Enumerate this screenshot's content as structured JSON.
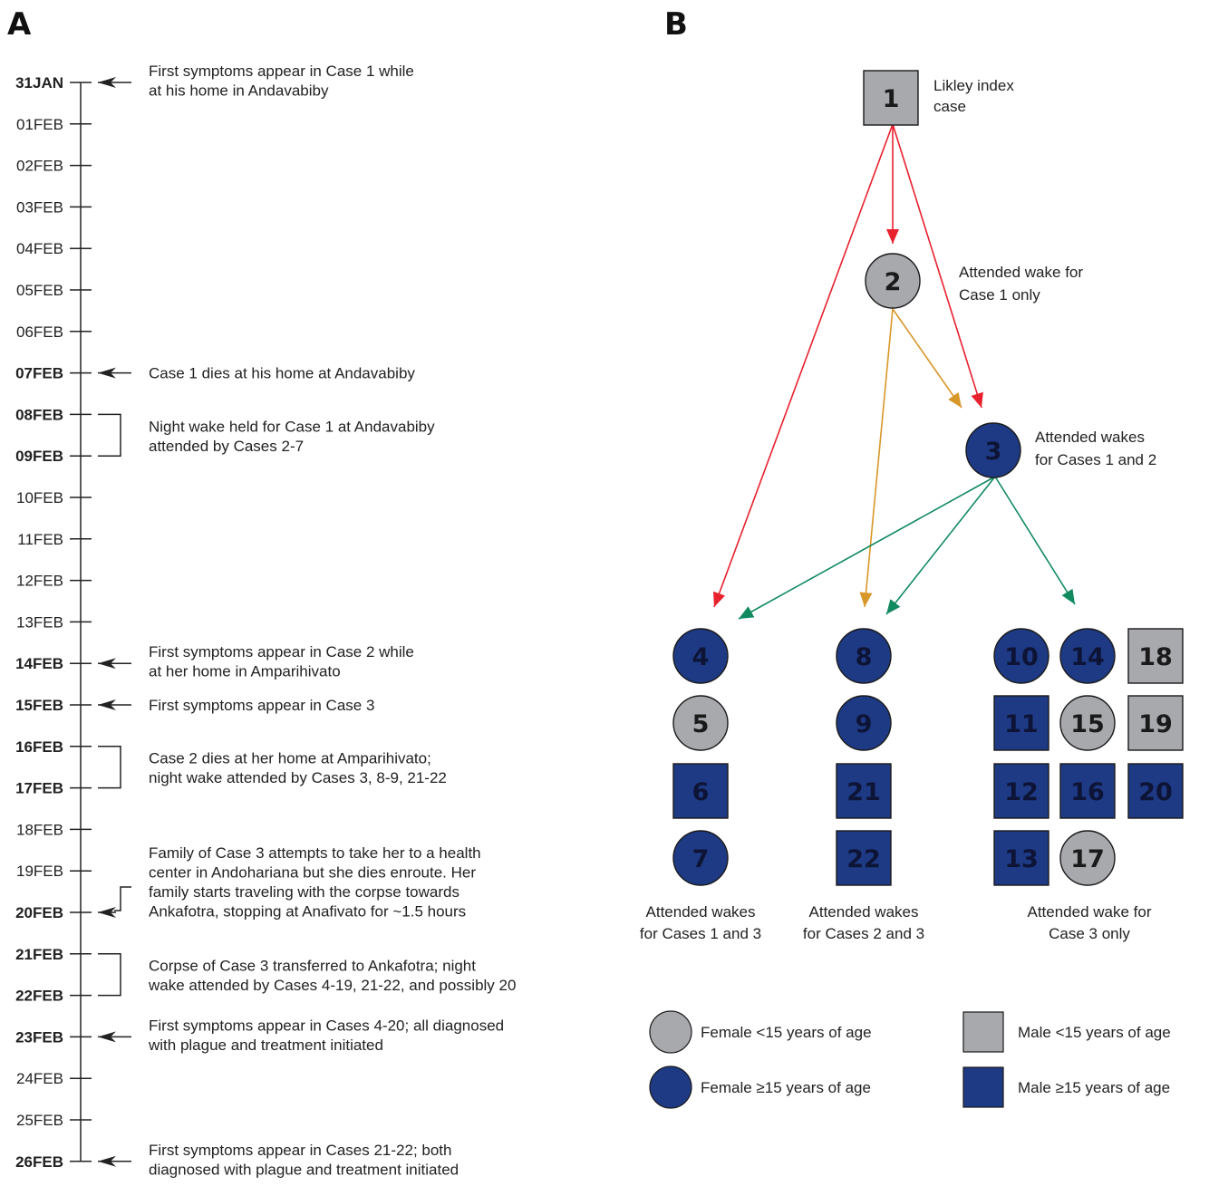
{
  "panels": {
    "a": "A",
    "b": "B"
  },
  "colors": {
    "female_lt15": "#a7a9ac",
    "female_ge15": "#1e3a84",
    "male_lt15": "#a7a9ac",
    "male_ge15": "#1e3a84",
    "arrow_case1": "#e8212e",
    "arrow_case2": "#d8972a",
    "arrow_case3": "#108a5e",
    "ink": "#222222"
  },
  "timeline": {
    "dates": [
      {
        "label": "31JAN",
        "bold": true
      },
      {
        "label": "01FEB",
        "bold": false
      },
      {
        "label": "02FEB",
        "bold": false
      },
      {
        "label": "03FEB",
        "bold": false
      },
      {
        "label": "04FEB",
        "bold": false
      },
      {
        "label": "05FEB",
        "bold": false
      },
      {
        "label": "06FEB",
        "bold": false
      },
      {
        "label": "07FEB",
        "bold": true
      },
      {
        "label": "08FEB",
        "bold": true
      },
      {
        "label": "09FEB",
        "bold": true
      },
      {
        "label": "10FEB",
        "bold": false
      },
      {
        "label": "11FEB",
        "bold": false
      },
      {
        "label": "12FEB",
        "bold": false
      },
      {
        "label": "13FEB",
        "bold": false
      },
      {
        "label": "14FEB",
        "bold": true
      },
      {
        "label": "15FEB",
        "bold": true
      },
      {
        "label": "16FEB",
        "bold": true
      },
      {
        "label": "17FEB",
        "bold": true
      },
      {
        "label": "18FEB",
        "bold": false
      },
      {
        "label": "19FEB",
        "bold": false
      },
      {
        "label": "20FEB",
        "bold": true
      },
      {
        "label": "21FEB",
        "bold": true
      },
      {
        "label": "22FEB",
        "bold": true
      },
      {
        "label": "23FEB",
        "bold": true
      },
      {
        "label": "24FEB",
        "bold": false
      },
      {
        "label": "25FEB",
        "bold": false
      },
      {
        "label": "26FEB",
        "bold": true
      }
    ],
    "events": [
      {
        "marker": "arrow",
        "from": 0,
        "lines": [
          "First symptoms appear in Case 1 while",
          "at his home in Andavabiby"
        ]
      },
      {
        "marker": "arrow",
        "from": 7,
        "lines": [
          "Case 1 dies at his home at Andavabiby"
        ]
      },
      {
        "marker": "bracket",
        "from": 8,
        "to": 9,
        "lines": [
          "Night wake held for Case 1 at Andavabiby",
          "attended by Cases 2-7"
        ]
      },
      {
        "marker": "arrow",
        "from": 14,
        "lines": [
          "First symptoms appear in Case 2 while",
          "at her home in Amparihivato"
        ]
      },
      {
        "marker": "arrow",
        "from": 15,
        "lines": [
          "First symptoms appear in Case 3"
        ]
      },
      {
        "marker": "bracket",
        "from": 16,
        "to": 17,
        "lines": [
          "Case 2 dies at her home at Amparihivato;",
          "night wake attended by Cases 3, 8-9, 21-22"
        ]
      },
      {
        "marker": "step",
        "from": 20,
        "lines": [
          "Family of Case 3 attempts to take her to a health",
          "center in Andohariana but she dies enroute. Her",
          "family starts traveling with the corpse towards",
          "Ankafotra, stopping at Anafivato for ~1.5 hours"
        ]
      },
      {
        "marker": "bracket",
        "from": 21,
        "to": 22,
        "lines": [
          "Corpse of Case 3 transferred to Ankafotra; night",
          "wake attended by Cases 4-19, 21-22, and possibly 20"
        ]
      },
      {
        "marker": "arrow",
        "from": 23,
        "lines": [
          "First symptoms appear in Cases 4-20; all diagnosed",
          "with plague and treatment initiated"
        ]
      },
      {
        "marker": "arrow",
        "from": 26,
        "lines": [
          "First symptoms appear in Cases 21-22; both",
          "diagnosed with plague and treatment initiated"
        ]
      }
    ]
  },
  "network": {
    "cases": [
      {
        "id": "1",
        "shape": "square",
        "group": "lt15"
      },
      {
        "id": "2",
        "shape": "circle",
        "group": "lt15"
      },
      {
        "id": "3",
        "shape": "circle",
        "group": "ge15"
      },
      {
        "id": "4",
        "shape": "circle",
        "group": "ge15"
      },
      {
        "id": "5",
        "shape": "circle",
        "group": "lt15"
      },
      {
        "id": "6",
        "shape": "square",
        "group": "ge15"
      },
      {
        "id": "7",
        "shape": "circle",
        "group": "ge15"
      },
      {
        "id": "8",
        "shape": "circle",
        "group": "ge15"
      },
      {
        "id": "9",
        "shape": "circle",
        "group": "ge15"
      },
      {
        "id": "21",
        "shape": "square",
        "group": "ge15"
      },
      {
        "id": "22",
        "shape": "square",
        "group": "ge15"
      },
      {
        "id": "10",
        "shape": "circle",
        "group": "ge15"
      },
      {
        "id": "11",
        "shape": "square",
        "group": "ge15"
      },
      {
        "id": "12",
        "shape": "square",
        "group": "ge15"
      },
      {
        "id": "13",
        "shape": "square",
        "group": "ge15"
      },
      {
        "id": "14",
        "shape": "circle",
        "group": "ge15"
      },
      {
        "id": "15",
        "shape": "circle",
        "group": "lt15"
      },
      {
        "id": "16",
        "shape": "square",
        "group": "ge15"
      },
      {
        "id": "17",
        "shape": "circle",
        "group": "lt15"
      },
      {
        "id": "18",
        "shape": "square",
        "group": "lt15"
      },
      {
        "id": "19",
        "shape": "square",
        "group": "lt15"
      },
      {
        "id": "20",
        "shape": "square",
        "group": "ge15"
      }
    ],
    "notes": {
      "case1": [
        "Likley index",
        "case"
      ],
      "case2": [
        "Attended wake for",
        "Case 1 only"
      ],
      "case3": [
        "Attended wakes",
        "for Cases 1 and 2"
      ]
    },
    "group_labels": [
      [
        "Attended wakes",
        "for Cases 1 and 3"
      ],
      [
        "Attended wakes",
        "for Cases 2 and 3"
      ],
      [
        "Attended wake for",
        "Case 3 only"
      ]
    ]
  },
  "legend": [
    {
      "shape": "circle",
      "group": "lt15",
      "label": "Female <15 years of age"
    },
    {
      "shape": "square",
      "group": "lt15",
      "label": "Male <15 years of age"
    },
    {
      "shape": "circle",
      "group": "ge15",
      "label": "Female ≥15 years of age"
    },
    {
      "shape": "square",
      "group": "ge15",
      "label": "Male ≥15 years of age"
    }
  ]
}
